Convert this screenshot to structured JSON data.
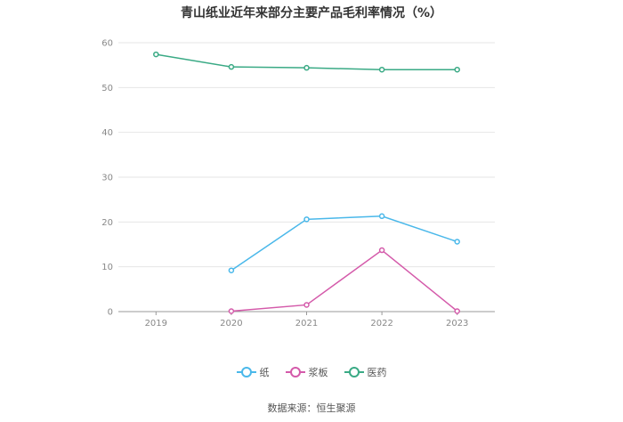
{
  "title": "青山纸业近年来部分主要产品毛利率情况（%）",
  "source": "数据来源：恒生聚源",
  "chart_data": {
    "type": "line",
    "categories": [
      "2019",
      "2020",
      "2021",
      "2022",
      "2023"
    ],
    "ylim": [
      0,
      60
    ],
    "yticks": [
      0,
      10,
      20,
      30,
      40,
      50,
      60
    ],
    "grid": true,
    "legend_position": "bottom",
    "series": [
      {
        "name": "纸",
        "color": "#4ab8ea",
        "values": [
          null,
          9.2,
          20.6,
          21.3,
          15.6
        ]
      },
      {
        "name": "浆板",
        "color": "#d45aaa",
        "values": [
          null,
          0.1,
          1.5,
          13.7,
          0.1
        ]
      },
      {
        "name": "医药",
        "color": "#3aaa85",
        "values": [
          57.4,
          54.6,
          54.4,
          54.0,
          54.0
        ]
      }
    ]
  }
}
